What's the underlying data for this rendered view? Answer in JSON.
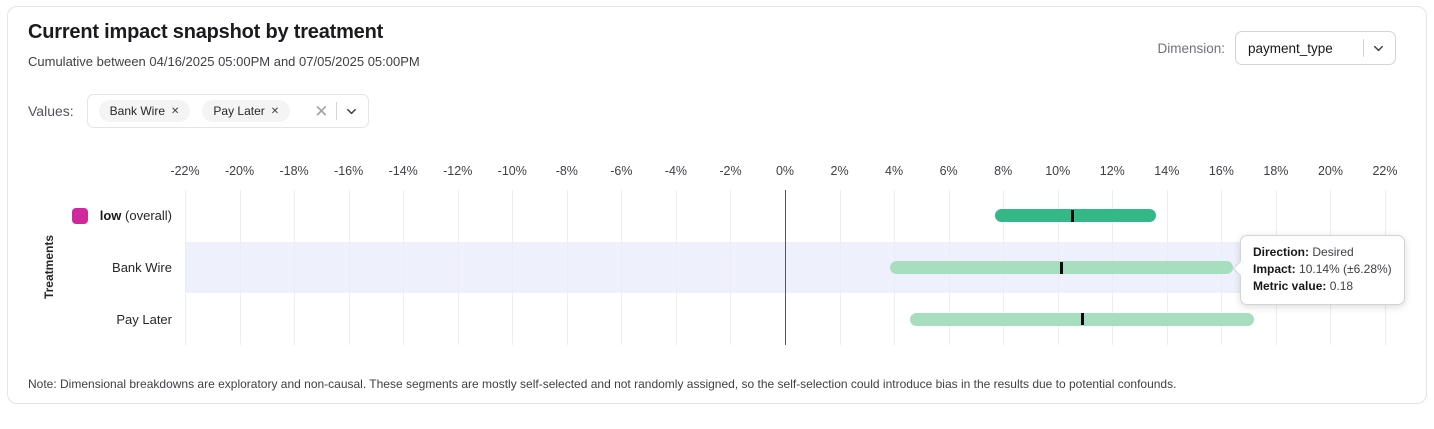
{
  "header": {
    "title": "Current impact snapshot by treatment",
    "subtitle": "Cumulative between 04/16/2025 05:00PM and 07/05/2025 05:00PM",
    "dimension_label": "Dimension:",
    "dimension_value": "payment_type"
  },
  "filters": {
    "label": "Values:",
    "chips": [
      {
        "label": "Bank Wire"
      },
      {
        "label": "Pay Later"
      }
    ],
    "remove_icon": "✕",
    "clear_icon": "✕"
  },
  "chart_data": {
    "type": "range_bar",
    "y_axis_label": "Treatments",
    "x_axis": {
      "min": -22,
      "max": 22,
      "step": 2,
      "unit": "%",
      "tick_labels": [
        "-22%",
        "-20%",
        "-18%",
        "-16%",
        "-14%",
        "-12%",
        "-10%",
        "-8%",
        "-6%",
        "-4%",
        "-2%",
        "0%",
        "2%",
        "4%",
        "6%",
        "8%",
        "10%",
        "12%",
        "14%",
        "16%",
        "18%",
        "20%",
        "22%"
      ]
    },
    "rows": [
      {
        "label": "low",
        "label_suffix": " (overall)",
        "legend_color": "#d1299d",
        "bar_color": "#34b887",
        "low": 7.7,
        "mid": 10.55,
        "high": 13.6,
        "highlighted": false
      },
      {
        "label": "Bank Wire",
        "label_suffix": "",
        "legend_color": null,
        "bar_color": "#a7dec0",
        "low": 3.86,
        "mid": 10.14,
        "high": 16.42,
        "highlighted": true
      },
      {
        "label": "Pay Later",
        "label_suffix": "",
        "legend_color": null,
        "bar_color": "#a7dec0",
        "low": 4.6,
        "mid": 10.9,
        "high": 17.2,
        "highlighted": false
      }
    ],
    "grid": true,
    "highlight_color": "#eef0fb",
    "zero_line_color": "#55565c",
    "marker_color": "#0b0b0d"
  },
  "tooltip": {
    "anchor_row": "Bank Wire",
    "lines": [
      {
        "label": "Direction:",
        "value": "Desired"
      },
      {
        "label": "Impact:",
        "value": "10.14% (±6.28%)"
      },
      {
        "label": "Metric value:",
        "value": "0.18"
      }
    ]
  },
  "note": "Note: Dimensional breakdowns are exploratory and non-causal. These segments are mostly self-selected and not randomly assigned, so the self-selection could introduce bias in the results due to potential confounds."
}
